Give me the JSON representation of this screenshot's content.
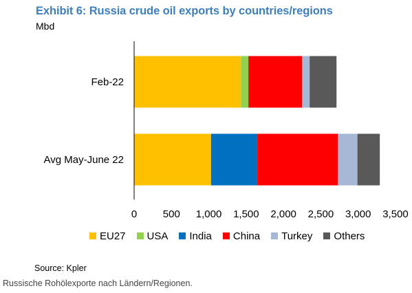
{
  "title": "Exhibit 6: Russia crude oil exports by countries/regions",
  "unit_label": "Mbd",
  "source": "Source: Kpler",
  "caption": "Russische Rohölexporte nach Ländern/Regionen.",
  "chart_data": {
    "type": "bar",
    "orientation": "horizontal",
    "stacked": true,
    "title": "Exhibit 6: Russia crude oil exports by countries/regions",
    "ylabel": "Mbd",
    "categories": [
      "Feb-22",
      "Avg May-June 22"
    ],
    "series": [
      {
        "name": "EU27",
        "color": "#ffc000",
        "values": [
          1430,
          1030
        ]
      },
      {
        "name": "USA",
        "color": "#92d050",
        "values": [
          100,
          0
        ]
      },
      {
        "name": "India",
        "color": "#0070c0",
        "values": [
          0,
          620
        ]
      },
      {
        "name": "China",
        "color": "#ff0000",
        "values": [
          720,
          1080
        ]
      },
      {
        "name": "Turkey",
        "color": "#a6b8d6",
        "values": [
          100,
          260
        ]
      },
      {
        "name": "Others",
        "color": "#595959",
        "values": [
          360,
          300
        ]
      }
    ],
    "xlim": [
      0,
      3500
    ],
    "xticks": [
      0,
      500,
      1000,
      1500,
      2000,
      2500,
      3000,
      3500
    ],
    "xtick_labels": [
      "0",
      "500",
      "1,000",
      "1,500",
      "2,000",
      "2,500",
      "3,000",
      "3,500"
    ],
    "grid": false,
    "legend_position": "bottom"
  }
}
